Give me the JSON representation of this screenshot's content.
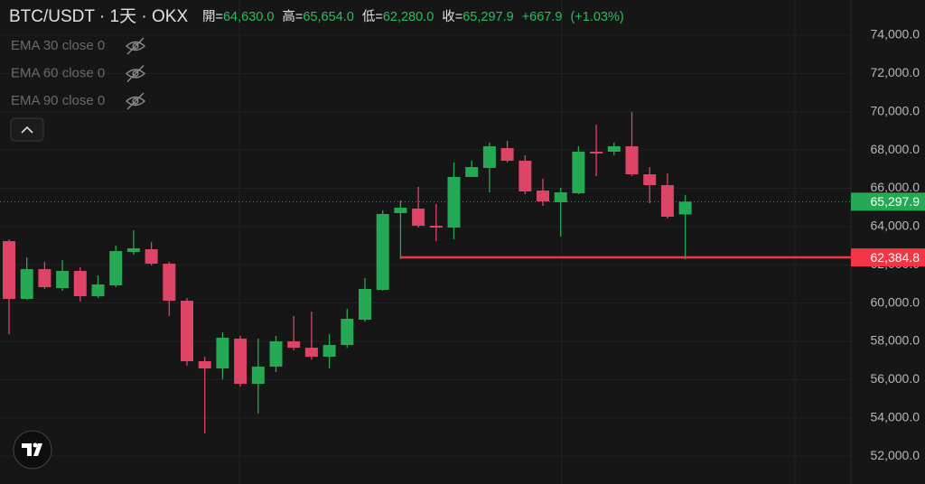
{
  "chart_data": {
    "type": "candlestick",
    "title": "BTC/USDT · 1天 · OKX",
    "ohlc_header": [
      {
        "name": "開=",
        "value": 64630,
        "label": "64,630.0"
      },
      {
        "name": "高=",
        "value": 65654,
        "label": "65,654.0"
      },
      {
        "name": "低=",
        "value": 62280,
        "label": "62,280.0"
      },
      {
        "name": "收=",
        "value": 65297.9,
        "label": "65,297.9"
      }
    ],
    "change": {
      "value": 667.9,
      "label": "+667.9"
    },
    "change_pct": {
      "value": 1.03,
      "label": "(+1.03%)"
    },
    "indicators": [
      "EMA 30 close 0",
      "EMA 60 close 0",
      "EMA 90 close 0"
    ],
    "up_color": "#26a954",
    "down_color": "#dd4466",
    "open": [
      63236,
      60214,
      61772,
      60781,
      61678,
      60356,
      60923,
      62670,
      62811,
      62056,
      60120,
      56957,
      56579,
      58138,
      55777,
      56674,
      57996,
      57665,
      57193,
      57807,
      59129,
      60687,
      64700,
      64936,
      64039,
      63944,
      66588,
      67060,
      68099,
      67438,
      65880,
      65267,
      65739,
      67910,
      67910,
      68193,
      66729,
      66163,
      64630
    ],
    "high": [
      63330,
      62386,
      62150,
      62245,
      61867,
      61442,
      63000,
      63803,
      63189,
      62150,
      60262,
      57193,
      58468,
      58279,
      58138,
      58279,
      59318,
      59554,
      58374,
      59696,
      61300,
      64841,
      65361,
      66069,
      65172,
      67343,
      67438,
      68382,
      68477,
      67721,
      66493,
      66022,
      68193,
      69326,
      68382,
      69987,
      67107,
      66777,
      65654
    ],
    "low": [
      58374,
      60167,
      60734,
      60640,
      60073,
      60262,
      60828,
      62528,
      61961,
      59318,
      56721,
      53181,
      56013,
      55635,
      54219,
      56391,
      57523,
      57051,
      56579,
      57665,
      59034,
      60640,
      62292,
      63944,
      63236,
      63330,
      66588,
      65786,
      67343,
      65691,
      65078,
      63472,
      65691,
      66635,
      67721,
      66635,
      65219,
      64417,
      62280
    ],
    "close": [
      60214,
      61772,
      60828,
      61678,
      60356,
      60970,
      62717,
      62859,
      62056,
      60120,
      56957,
      56579,
      58185,
      55777,
      56674,
      57996,
      57665,
      57193,
      57807,
      59176,
      60734,
      64652,
      64983,
      64039,
      63944,
      66588,
      67107,
      68193,
      67438,
      65833,
      65314,
      65786,
      67910,
      67815,
      68193,
      66729,
      66163,
      64511,
      65297.9
    ],
    "ylim": [
      50540,
      75840
    ],
    "yticks": [
      {
        "value": 52000,
        "label": "52,000.0"
      },
      {
        "value": 54000,
        "label": "54,000.0"
      },
      {
        "value": 56000,
        "label": "56,000.0"
      },
      {
        "value": 58000,
        "label": "58,000.0"
      },
      {
        "value": 60000,
        "label": "60,000.0"
      },
      {
        "value": 62000,
        "label": "62,000.0"
      },
      {
        "value": 64000,
        "label": "64,000.0"
      },
      {
        "value": 66000,
        "label": "66,000.0"
      },
      {
        "value": 68000,
        "label": "68,000.0"
      },
      {
        "value": 70000,
        "label": "70,000.0"
      },
      {
        "value": 72000,
        "label": "72,000.0"
      },
      {
        "value": 74000,
        "label": "74,000.0"
      }
    ],
    "grid": true,
    "price_lines": [
      {
        "value": 65297.9,
        "label": "65,297.9",
        "color": "#26a954"
      },
      {
        "value": 62384.8,
        "label": "62,384.8",
        "color": "#f23645"
      }
    ]
  }
}
